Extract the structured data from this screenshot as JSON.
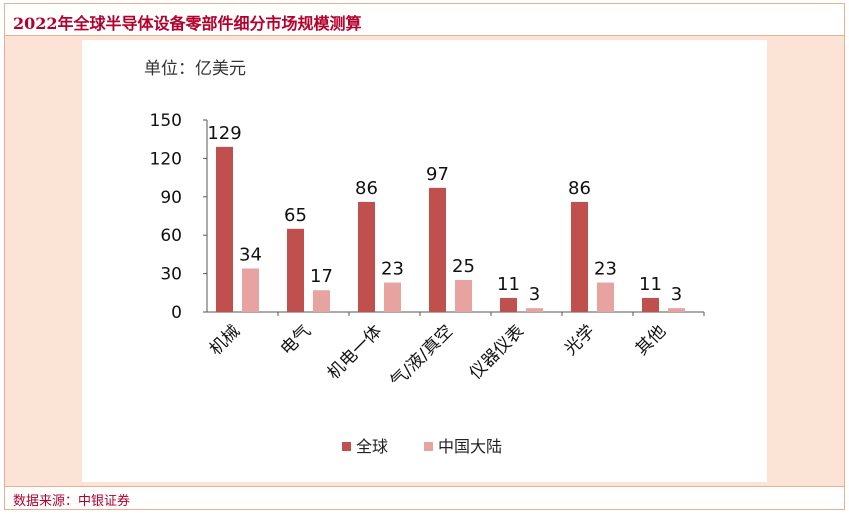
{
  "header": {
    "title": "2022年全球半导体设备零部件细分市场规模测算"
  },
  "footer": {
    "source": "数据来源：中银证券"
  },
  "colors": {
    "global": "#c0504d",
    "china": "#e6a3a0",
    "accent": "#b3002d",
    "panel": "#fbe3d6"
  },
  "chart_data": {
    "type": "bar",
    "unit_label": "单位：亿美元",
    "categories": [
      "机械",
      "电气",
      "机电一体",
      "气/液/真空",
      "仪器仪表",
      "光学",
      "其他"
    ],
    "series": [
      {
        "name": "全球",
        "values": [
          129,
          65,
          86,
          97,
          11,
          86,
          11
        ]
      },
      {
        "name": "中国大陆",
        "values": [
          34,
          17,
          23,
          25,
          3,
          23,
          3
        ]
      }
    ],
    "yticks": [
      0,
      30,
      60,
      90,
      120,
      150
    ],
    "ylim": [
      0,
      150
    ],
    "grid": false,
    "legend": "bottom"
  }
}
